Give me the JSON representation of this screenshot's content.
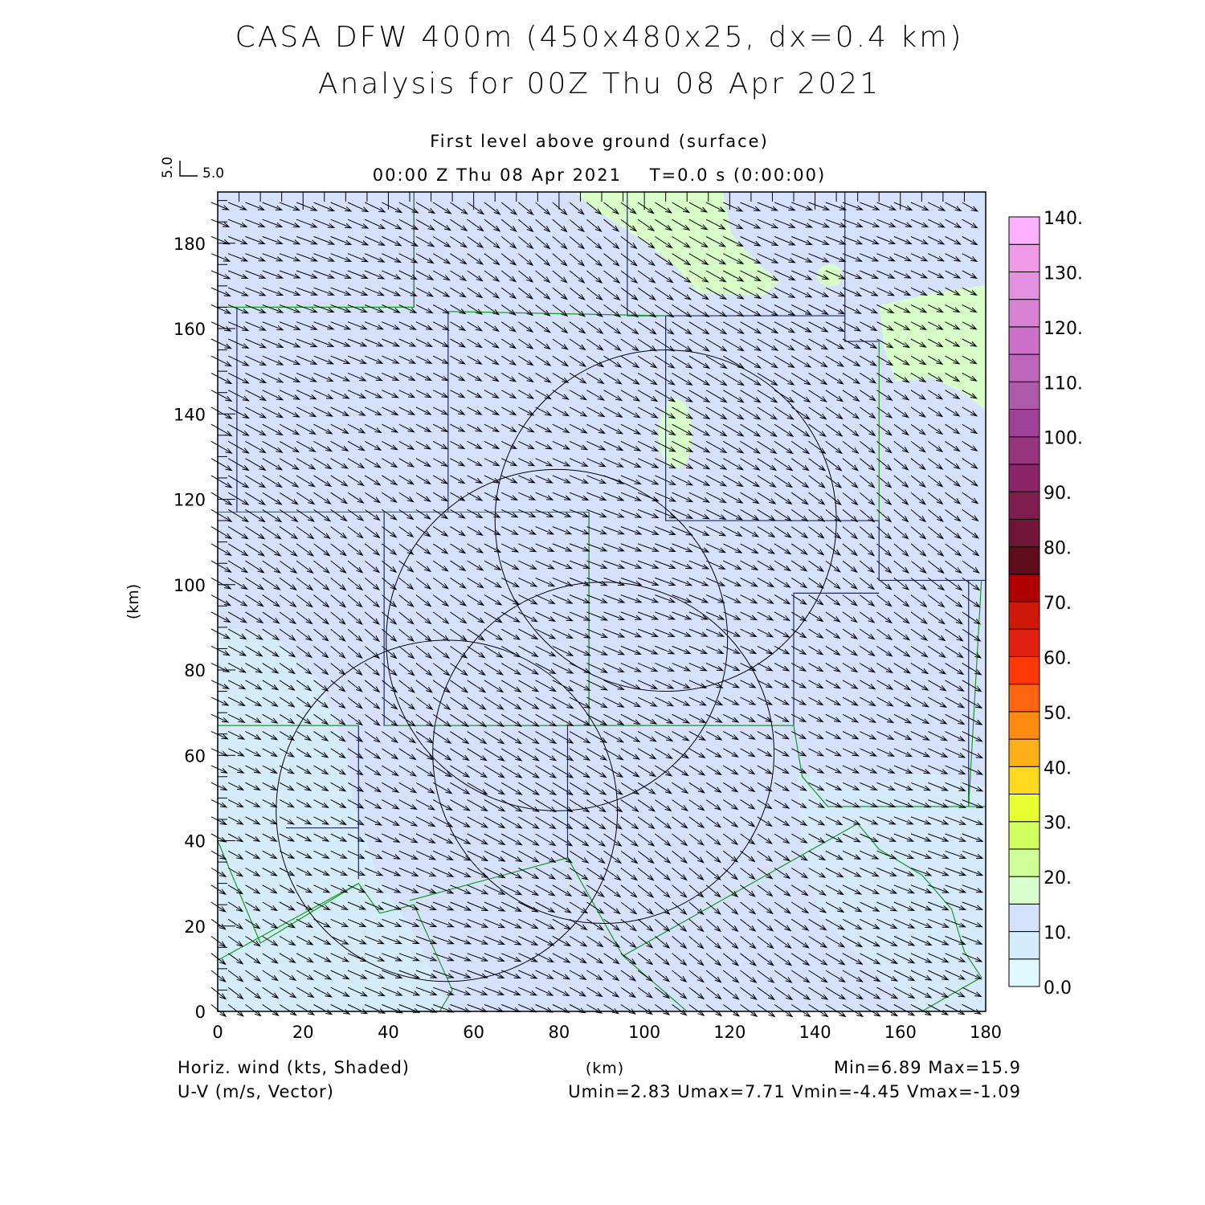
{
  "chart_data": {
    "type": "vector",
    "title": "CASA DFW 400m (450x480x25, dx=0.4 km)",
    "subtitle": "Analysis for 00Z Thu 08 Apr 2021",
    "level_label": "First level above ground (surface)",
    "time_label": "00:00 Z Thu 08 Apr 2021    T=0.0 s (0:00:00)",
    "xlabel": "(km)",
    "ylabel": "(km)",
    "xlim": [
      0,
      180
    ],
    "ylim": [
      0,
      192
    ],
    "xticks": [
      "0",
      "20",
      "40",
      "60",
      "80",
      "100",
      "120",
      "140",
      "160",
      "180"
    ],
    "yticks": [
      "0",
      "20",
      "40",
      "60",
      "80",
      "100",
      "120",
      "140",
      "160",
      "180"
    ],
    "reference_vector": {
      "u_label": "5.0",
      "v_label": "5.0"
    },
    "shaded_field": "Horiz. wind (kts, Shaded)",
    "vector_field": "U-V (m/s, Vector)",
    "stats": {
      "minmax": "Min=6.89 Max=15.9",
      "uv": "Umin=2.83 Umax=7.71 Vmin=-4.45 Vmax=-1.09"
    },
    "u_range": [
      2.83,
      7.71
    ],
    "v_range": [
      -4.45,
      -1.09
    ],
    "speed_range_kts": [
      6.89,
      15.9
    ],
    "colorbar": {
      "levels": [
        0,
        5,
        10,
        15,
        20,
        25,
        30,
        35,
        40,
        45,
        50,
        55,
        60,
        65,
        70,
        75,
        80,
        85,
        90,
        95,
        100,
        105,
        110,
        115,
        120,
        125,
        130,
        135,
        140
      ],
      "labels": [
        "0.0",
        "10.",
        "20.",
        "30.",
        "40.",
        "50.",
        "60.",
        "70.",
        "80.",
        "90.",
        "100.",
        "110.",
        "120.",
        "130.",
        "140."
      ],
      "colors": [
        "#e0f8ff",
        "#d4ecfc",
        "#d6e0ff",
        "#d8ffcc",
        "#d0ff98",
        "#d0ff60",
        "#e8ff30",
        "#ffd820",
        "#ffb018",
        "#ff8c10",
        "#ff6410",
        "#ff3808",
        "#e02010",
        "#d01808",
        "#b00000",
        "#600c1c",
        "#701438",
        "#801c4e",
        "#8b2566",
        "#96357e",
        "#a04098",
        "#ad5aab",
        "#be66bb",
        "#cb70c8",
        "#d882d4",
        "#e490e0",
        "#f09be8",
        "#ffb0ff"
      ]
    },
    "range_rings_km": [
      {
        "center": [
          105,
          115
        ],
        "radius": 40
      },
      {
        "center": [
          79.5,
          87
        ],
        "radius": 40
      },
      {
        "center": [
          90.4,
          60.6
        ],
        "radius": 40
      },
      {
        "center": [
          53.7,
          47
        ],
        "radius": 40
      }
    ],
    "mean_vector_ms": {
      "u": 5.0,
      "v": -2.8
    }
  }
}
